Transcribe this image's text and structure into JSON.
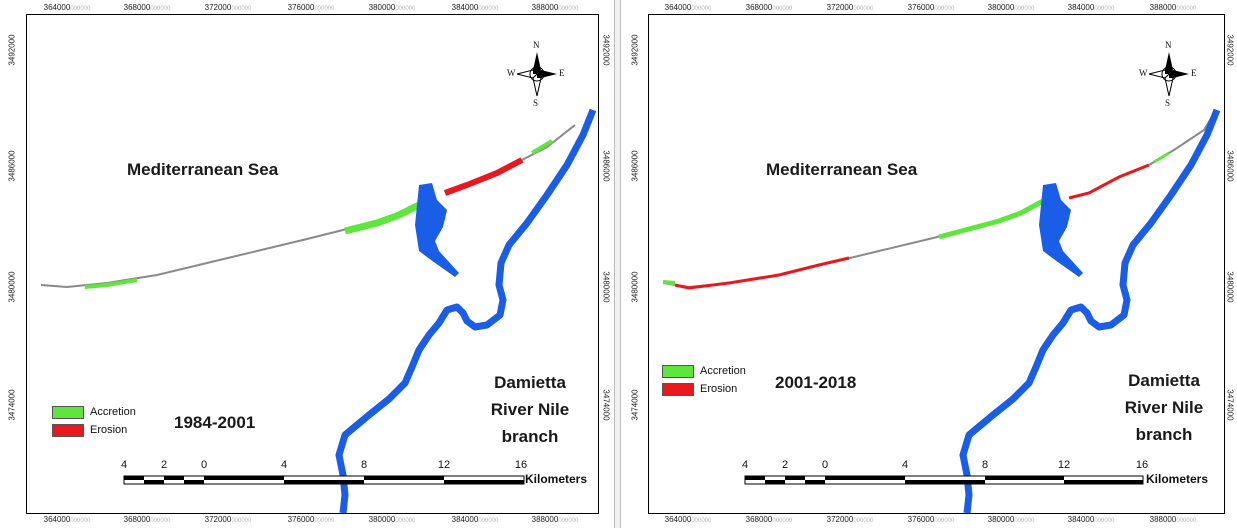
{
  "panels": [
    {
      "id": "left",
      "period": "1984-2001",
      "sea_label": "Mediterranean Sea",
      "river_label": [
        "Damietta",
        "River Nile",
        "branch"
      ],
      "x_ticks": [
        "364000",
        "368000",
        "372000",
        "376000",
        "380000",
        "384000",
        "388000"
      ],
      "y_ticks": [
        "3492000",
        "3486000",
        "3480000",
        "3474000"
      ],
      "legend": [
        {
          "label": "Accretion",
          "color": "#5ee63c"
        },
        {
          "label": "Erosion",
          "color": "#e8191e"
        }
      ],
      "scale": {
        "ticks": [
          "4",
          "2",
          "0",
          "4",
          "8",
          "12",
          "16"
        ],
        "unit": "Kilometers"
      },
      "compass": {
        "n": "N",
        "s": "S",
        "e": "E",
        "w": "W"
      }
    },
    {
      "id": "right",
      "period": "2001-2018",
      "sea_label": "Mediterranean Sea",
      "river_label": [
        "Damietta",
        "River Nile",
        "branch"
      ],
      "x_ticks": [
        "364000",
        "368000",
        "372000",
        "376000",
        "380000",
        "384000",
        "388000"
      ],
      "y_ticks": [
        "3492000",
        "3486000",
        "3480000",
        "3474000"
      ],
      "legend": [
        {
          "label": "Accretion",
          "color": "#5ee63c"
        },
        {
          "label": "Erosion",
          "color": "#e8191e"
        }
      ],
      "scale": {
        "ticks": [
          "4",
          "2",
          "0",
          "4",
          "8",
          "12",
          "16"
        ],
        "unit": "Kilometers"
      },
      "compass": {
        "n": "N",
        "s": "S",
        "e": "E",
        "w": "W"
      }
    }
  ],
  "tick_suffix": "000000",
  "colors": {
    "river": "#1a5ee8",
    "accretion": "#5ee63c",
    "erosion": "#e8191e",
    "shoreline": "#888888"
  }
}
